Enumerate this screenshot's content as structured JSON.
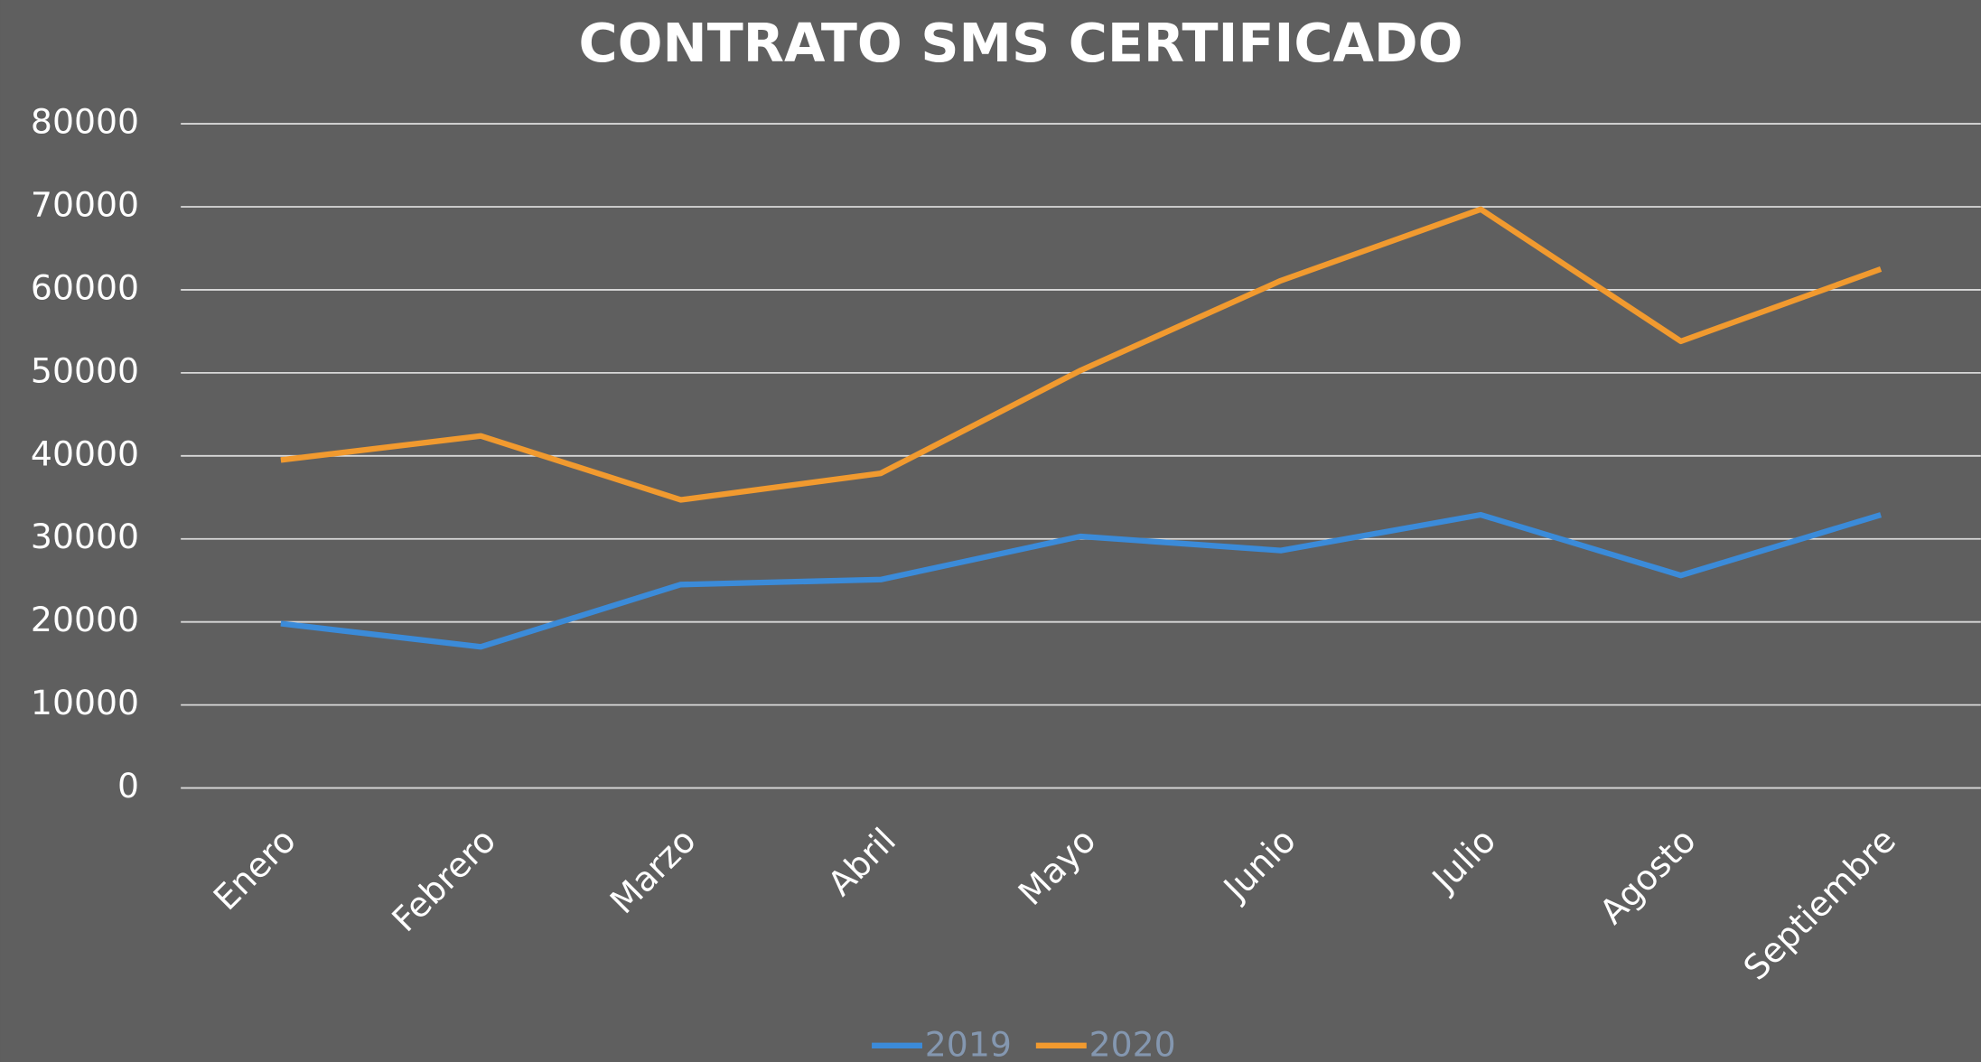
{
  "chart_data": {
    "type": "line",
    "title": "CONTRATO SMS CERTIFICADO",
    "categories": [
      "Enero",
      "Febrero",
      "Marzo",
      "Abril",
      "Mayo",
      "Junio",
      "Julio",
      "Agosto",
      "Septiembre"
    ],
    "series": [
      {
        "name": "2019",
        "color": "#3b8bd9",
        "values": [
          19800,
          17000,
          24500,
          25100,
          30300,
          28600,
          32900,
          25600,
          32900
        ]
      },
      {
        "name": "2020",
        "color": "#f19a2f",
        "values": [
          39500,
          42400,
          34700,
          37900,
          50300,
          61100,
          69700,
          53800,
          62500
        ]
      }
    ],
    "ylim": [
      0,
      80000
    ],
    "yticks": [
      0,
      10000,
      20000,
      30000,
      40000,
      50000,
      60000,
      70000,
      80000
    ],
    "grid": true,
    "legend": "bottom"
  }
}
